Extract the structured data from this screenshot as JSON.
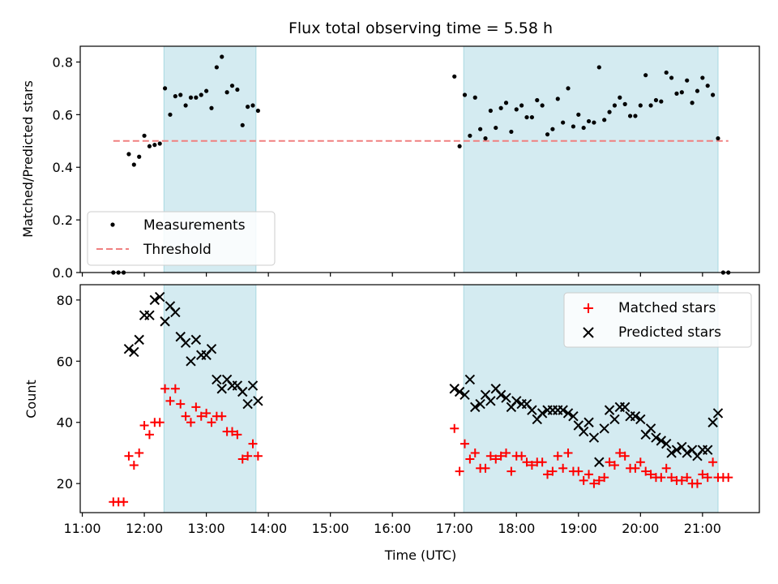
{
  "title": "Flux total observing time = 5.58 h",
  "top": {
    "ylabel": "Matched/Predicted stars",
    "ylim": [
      0,
      0.86
    ],
    "yticks": [
      {
        "value": 0.0,
        "label": "0.0"
      },
      {
        "value": 0.2,
        "label": "0.2"
      },
      {
        "value": 0.4,
        "label": "0.4"
      },
      {
        "value": 0.6,
        "label": "0.6"
      },
      {
        "value": 0.8,
        "label": "0.8"
      }
    ],
    "legend": {
      "placement": "lower-left",
      "measurements": "Measurements",
      "threshold": "Threshold"
    }
  },
  "bottom": {
    "ylabel": "Count",
    "ylim": [
      10.5,
      85
    ],
    "yticks": [
      {
        "value": 20,
        "label": "20"
      },
      {
        "value": 40,
        "label": "40"
      },
      {
        "value": 60,
        "label": "60"
      },
      {
        "value": 80,
        "label": "80"
      }
    ],
    "legend": {
      "placement": "upper-right",
      "matched": "Matched stars",
      "predicted": "Predicted stars"
    }
  },
  "xaxis": {
    "label": "Time (UTC)",
    "xlim": [
      "10:58",
      "21:55"
    ],
    "ticks": [
      "11:00",
      "12:00",
      "13:00",
      "14:00",
      "15:00",
      "16:00",
      "17:00",
      "18:00",
      "19:00",
      "20:00",
      "21:00"
    ]
  },
  "colors": {
    "measurement": "#000000",
    "threshold": "#f08080",
    "matched": "#ff0000",
    "predicted": "#000000",
    "shade": "#d4ebf1",
    "shade_edge": "#a8d8e0"
  },
  "chart_data": [
    {
      "type": "scatter",
      "title": "Flux total observing time = 5.58 h",
      "xlabel": "",
      "ylabel": "Matched/Predicted stars",
      "ylim": [
        0,
        0.86
      ],
      "grid": false,
      "legend": "lower-left",
      "shaded_intervals": [
        [
          "12:19",
          "13:48"
        ],
        [
          "17:09",
          "21:15"
        ]
      ],
      "threshold": {
        "name": "Threshold",
        "value": 0.5,
        "x_range": [
          "11:30",
          "21:25"
        ]
      },
      "series": [
        {
          "name": "Measurements",
          "points": [
            [
              "11:30",
              0.0
            ],
            [
              "11:35",
              0.0
            ],
            [
              "11:40",
              0.0
            ],
            [
              "11:45",
              0.45
            ],
            [
              "11:50",
              0.41
            ],
            [
              "11:55",
              0.44
            ],
            [
              "12:00",
              0.52
            ],
            [
              "12:05",
              0.48
            ],
            [
              "12:10",
              0.485
            ],
            [
              "12:15",
              0.49
            ],
            [
              "12:20",
              0.7
            ],
            [
              "12:25",
              0.6
            ],
            [
              "12:30",
              0.67
            ],
            [
              "12:35",
              0.675
            ],
            [
              "12:40",
              0.635
            ],
            [
              "12:45",
              0.665
            ],
            [
              "12:50",
              0.665
            ],
            [
              "12:55",
              0.675
            ],
            [
              "13:00",
              0.69
            ],
            [
              "13:05",
              0.625
            ],
            [
              "13:10",
              0.78
            ],
            [
              "13:15",
              0.82
            ],
            [
              "13:20",
              0.685
            ],
            [
              "13:25",
              0.71
            ],
            [
              "13:30",
              0.695
            ],
            [
              "13:35",
              0.56
            ],
            [
              "13:40",
              0.63
            ],
            [
              "13:45",
              0.635
            ],
            [
              "13:50",
              0.615
            ],
            [
              "17:00",
              0.745
            ],
            [
              "17:05",
              0.48
            ],
            [
              "17:10",
              0.675
            ],
            [
              "17:15",
              0.52
            ],
            [
              "17:20",
              0.665
            ],
            [
              "17:25",
              0.545
            ],
            [
              "17:30",
              0.51
            ],
            [
              "17:35",
              0.615
            ],
            [
              "17:40",
              0.55
            ],
            [
              "17:45",
              0.625
            ],
            [
              "17:50",
              0.645
            ],
            [
              "17:55",
              0.535
            ],
            [
              "18:00",
              0.62
            ],
            [
              "18:05",
              0.635
            ],
            [
              "18:10",
              0.59
            ],
            [
              "18:15",
              0.59
            ],
            [
              "18:20",
              0.655
            ],
            [
              "18:25",
              0.635
            ],
            [
              "18:30",
              0.525
            ],
            [
              "18:35",
              0.545
            ],
            [
              "18:40",
              0.66
            ],
            [
              "18:45",
              0.57
            ],
            [
              "18:50",
              0.7
            ],
            [
              "18:55",
              0.555
            ],
            [
              "19:00",
              0.6
            ],
            [
              "19:05",
              0.55
            ],
            [
              "19:10",
              0.575
            ],
            [
              "19:15",
              0.57
            ],
            [
              "19:20",
              0.78
            ],
            [
              "19:25",
              0.58
            ],
            [
              "19:30",
              0.61
            ],
            [
              "19:35",
              0.635
            ],
            [
              "19:40",
              0.665
            ],
            [
              "19:45",
              0.64
            ],
            [
              "19:50",
              0.595
            ],
            [
              "19:55",
              0.595
            ],
            [
              "20:00",
              0.635
            ],
            [
              "20:05",
              0.75
            ],
            [
              "20:10",
              0.635
            ],
            [
              "20:15",
              0.655
            ],
            [
              "20:20",
              0.65
            ],
            [
              "20:25",
              0.76
            ],
            [
              "20:30",
              0.74
            ],
            [
              "20:35",
              0.68
            ],
            [
              "20:40",
              0.685
            ],
            [
              "20:45",
              0.73
            ],
            [
              "20:50",
              0.645
            ],
            [
              "20:55",
              0.69
            ],
            [
              "21:00",
              0.74
            ],
            [
              "21:05",
              0.71
            ],
            [
              "21:10",
              0.675
            ],
            [
              "21:15",
              0.51
            ],
            [
              "21:20",
              0.0
            ],
            [
              "21:25",
              0.0
            ]
          ]
        }
      ]
    },
    {
      "type": "scatter",
      "xlabel": "Time (UTC)",
      "ylabel": "Count",
      "ylim": [
        10.5,
        85
      ],
      "grid": false,
      "legend": "upper-right",
      "shaded_intervals": [
        [
          "12:19",
          "13:48"
        ],
        [
          "17:09",
          "21:15"
        ]
      ],
      "series": [
        {
          "name": "Matched stars",
          "points": [
            [
              "11:30",
              14
            ],
            [
              "11:35",
              14
            ],
            [
              "11:40",
              14
            ],
            [
              "11:45",
              29
            ],
            [
              "11:50",
              26
            ],
            [
              "11:55",
              30
            ],
            [
              "12:00",
              39
            ],
            [
              "12:05",
              36
            ],
            [
              "12:10",
              40
            ],
            [
              "12:15",
              40
            ],
            [
              "12:20",
              51
            ],
            [
              "12:25",
              47
            ],
            [
              "12:30",
              51
            ],
            [
              "12:35",
              46
            ],
            [
              "12:40",
              42
            ],
            [
              "12:45",
              40
            ],
            [
              "12:50",
              45
            ],
            [
              "12:55",
              42
            ],
            [
              "13:00",
              43
            ],
            [
              "13:05",
              40
            ],
            [
              "13:10",
              42
            ],
            [
              "13:15",
              42
            ],
            [
              "13:20",
              37
            ],
            [
              "13:25",
              37
            ],
            [
              "13:30",
              36
            ],
            [
              "13:35",
              28
            ],
            [
              "13:40",
              29
            ],
            [
              "13:45",
              33
            ],
            [
              "13:50",
              29
            ],
            [
              "17:00",
              38
            ],
            [
              "17:05",
              24
            ],
            [
              "17:10",
              33
            ],
            [
              "17:15",
              28
            ],
            [
              "17:20",
              30
            ],
            [
              "17:25",
              25
            ],
            [
              "17:30",
              25
            ],
            [
              "17:35",
              29
            ],
            [
              "17:40",
              28
            ],
            [
              "17:45",
              29
            ],
            [
              "17:50",
              30
            ],
            [
              "17:55",
              24
            ],
            [
              "18:00",
              29
            ],
            [
              "18:05",
              29
            ],
            [
              "18:10",
              27
            ],
            [
              "18:15",
              26
            ],
            [
              "18:20",
              27
            ],
            [
              "18:25",
              27
            ],
            [
              "18:30",
              23
            ],
            [
              "18:35",
              24
            ],
            [
              "18:40",
              29
            ],
            [
              "18:45",
              25
            ],
            [
              "18:50",
              30
            ],
            [
              "18:55",
              24
            ],
            [
              "19:00",
              24
            ],
            [
              "19:05",
              21
            ],
            [
              "19:10",
              23
            ],
            [
              "19:15",
              20
            ],
            [
              "19:20",
              21
            ],
            [
              "19:25",
              22
            ],
            [
              "19:30",
              27
            ],
            [
              "19:35",
              26
            ],
            [
              "19:40",
              30
            ],
            [
              "19:45",
              29
            ],
            [
              "19:50",
              25
            ],
            [
              "19:55",
              25
            ],
            [
              "20:00",
              27
            ],
            [
              "20:05",
              24
            ],
            [
              "20:10",
              23
            ],
            [
              "20:15",
              22
            ],
            [
              "20:20",
              22
            ],
            [
              "20:25",
              25
            ],
            [
              "20:30",
              22
            ],
            [
              "20:35",
              21
            ],
            [
              "20:40",
              21
            ],
            [
              "20:45",
              22
            ],
            [
              "20:50",
              20
            ],
            [
              "20:55",
              20
            ],
            [
              "21:00",
              23
            ],
            [
              "21:05",
              22
            ],
            [
              "21:10",
              27
            ],
            [
              "21:15",
              22
            ],
            [
              "21:20",
              22
            ],
            [
              "21:25",
              22
            ]
          ]
        },
        {
          "name": "Predicted stars",
          "points": [
            [
              "11:45",
              64
            ],
            [
              "11:50",
              63
            ],
            [
              "11:55",
              67
            ],
            [
              "12:00",
              75
            ],
            [
              "12:05",
              75
            ],
            [
              "12:10",
              80
            ],
            [
              "12:15",
              81
            ],
            [
              "12:20",
              73
            ],
            [
              "12:25",
              78
            ],
            [
              "12:30",
              76
            ],
            [
              "12:35",
              68
            ],
            [
              "12:40",
              66
            ],
            [
              "12:45",
              60
            ],
            [
              "12:50",
              67
            ],
            [
              "12:55",
              62
            ],
            [
              "13:00",
              62
            ],
            [
              "13:05",
              64
            ],
            [
              "13:10",
              54
            ],
            [
              "13:15",
              51
            ],
            [
              "13:20",
              54
            ],
            [
              "13:25",
              52
            ],
            [
              "13:30",
              52
            ],
            [
              "13:35",
              50
            ],
            [
              "13:40",
              46
            ],
            [
              "13:45",
              52
            ],
            [
              "13:50",
              47
            ],
            [
              "17:00",
              51
            ],
            [
              "17:05",
              50
            ],
            [
              "17:10",
              49
            ],
            [
              "17:15",
              54
            ],
            [
              "17:20",
              45
            ],
            [
              "17:25",
              46
            ],
            [
              "17:30",
              49
            ],
            [
              "17:35",
              47
            ],
            [
              "17:40",
              51
            ],
            [
              "17:45",
              49
            ],
            [
              "17:50",
              48
            ],
            [
              "17:55",
              45
            ],
            [
              "18:00",
              47
            ],
            [
              "18:05",
              46
            ],
            [
              "18:10",
              46
            ],
            [
              "18:15",
              44
            ],
            [
              "18:20",
              41
            ],
            [
              "18:25",
              43
            ],
            [
              "18:30",
              44
            ],
            [
              "18:35",
              44
            ],
            [
              "18:40",
              44
            ],
            [
              "18:45",
              44
            ],
            [
              "18:50",
              43
            ],
            [
              "18:55",
              42
            ],
            [
              "19:00",
              39
            ],
            [
              "19:05",
              37
            ],
            [
              "19:10",
              40
            ],
            [
              "19:15",
              35
            ],
            [
              "19:20",
              27
            ],
            [
              "19:25",
              38
            ],
            [
              "19:30",
              44
            ],
            [
              "19:35",
              41
            ],
            [
              "19:40",
              45
            ],
            [
              "19:45",
              45
            ],
            [
              "19:50",
              42
            ],
            [
              "19:55",
              42
            ],
            [
              "20:00",
              41
            ],
            [
              "20:05",
              36
            ],
            [
              "20:10",
              38
            ],
            [
              "20:15",
              35
            ],
            [
              "20:20",
              34
            ],
            [
              "20:25",
              33
            ],
            [
              "20:30",
              30
            ],
            [
              "20:35",
              31
            ],
            [
              "20:40",
              32
            ],
            [
              "20:45",
              30
            ],
            [
              "20:50",
              31
            ],
            [
              "20:55",
              29
            ],
            [
              "21:00",
              31
            ],
            [
              "21:05",
              31
            ],
            [
              "21:10",
              40
            ],
            [
              "21:15",
              43
            ]
          ]
        }
      ]
    }
  ]
}
